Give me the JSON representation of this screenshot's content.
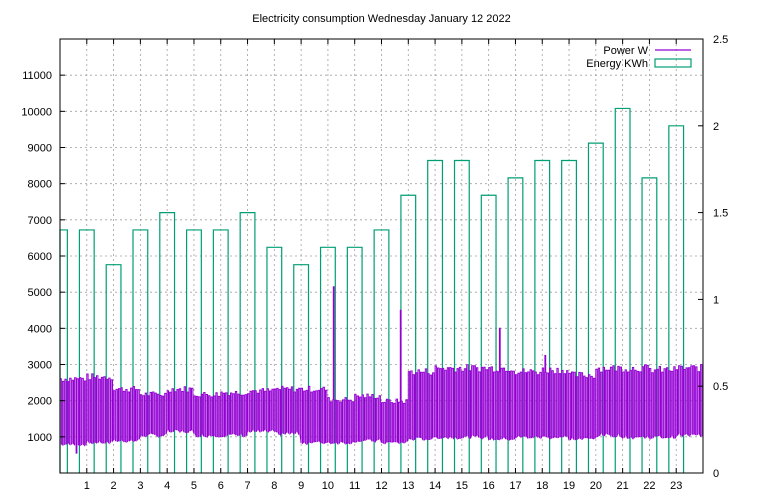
{
  "chart_data": {
    "type": "bar",
    "title": "Electricity consumption Wednesday January 12 2022",
    "x": {
      "range": [
        0,
        24
      ],
      "tick_labels": [
        "1",
        "2",
        "3",
        "4",
        "5",
        "6",
        "7",
        "8",
        "9",
        "10",
        "11",
        "12",
        "13",
        "14",
        "15",
        "16",
        "17",
        "18",
        "19",
        "20",
        "21",
        "22",
        "23"
      ]
    },
    "y_left": {
      "range": [
        0,
        12000
      ],
      "tick_labels": [
        "1000",
        "2000",
        "3000",
        "4000",
        "5000",
        "6000",
        "7000",
        "8000",
        "9000",
        "10000",
        "11000"
      ]
    },
    "y_right": {
      "range": [
        0,
        2.5
      ],
      "tick_labels": [
        "0",
        "0.5",
        "1",
        "1.5",
        "2",
        "2.5"
      ]
    },
    "grid": true,
    "legend_position": "top-right",
    "series": [
      {
        "name": "Energy KWh",
        "type": "bar",
        "axis": "right",
        "color": "#009e73",
        "x": [
          0,
          1,
          2,
          3,
          4,
          5,
          6,
          7,
          8,
          9,
          10,
          11,
          12,
          13,
          14,
          15,
          16,
          17,
          18,
          19,
          20,
          21,
          22,
          23
        ],
        "values": [
          1.4,
          1.4,
          1.2,
          1.4,
          1.5,
          1.4,
          1.4,
          1.5,
          1.3,
          1.2,
          1.3,
          1.3,
          1.4,
          1.6,
          1.8,
          1.8,
          1.6,
          1.7,
          1.8,
          1.8,
          1.9,
          2.1,
          1.7,
          2.0
        ]
      },
      {
        "name": "Power W",
        "type": "line",
        "axis": "left",
        "color": "#9400d3",
        "hourly_low": [
          800,
          850,
          900,
          1050,
          1150,
          1050,
          1050,
          1150,
          1100,
          850,
          850,
          900,
          850,
          950,
          1000,
          1000,
          950,
          1000,
          1000,
          950,
          1050,
          1000,
          1000,
          1050
        ],
        "hourly_high": [
          2700,
          2750,
          2400,
          2250,
          2400,
          2250,
          2300,
          2350,
          2400,
          2400,
          2100,
          2200,
          2050,
          2900,
          3000,
          3000,
          3000,
          2900,
          2950,
          2800,
          3000,
          3000,
          2950,
          3000
        ],
        "spikes": [
          {
            "x": 10.2,
            "value": 5150
          },
          {
            "x": 12.7,
            "value": 4500
          },
          {
            "x": 16.4,
            "value": 4000
          },
          {
            "x": 18.1,
            "value": 3250
          },
          {
            "x": 0.6,
            "value": 550
          }
        ]
      }
    ]
  }
}
